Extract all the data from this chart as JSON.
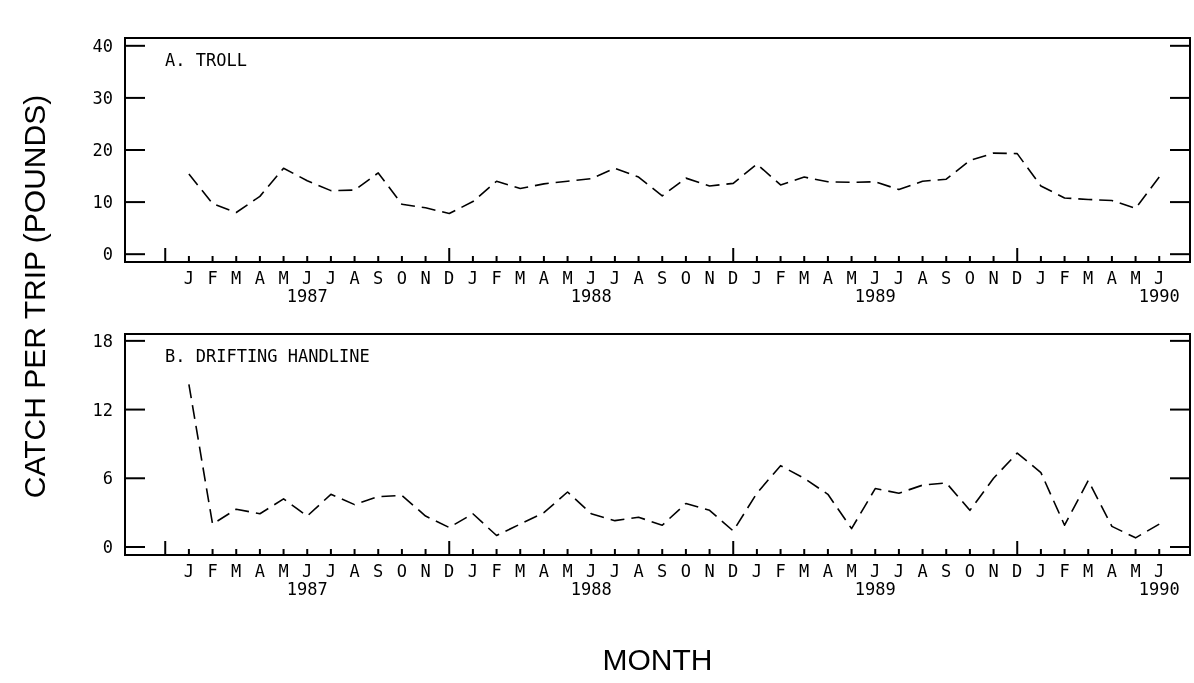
{
  "chart_data": [
    {
      "type": "line",
      "title": "A. TROLL",
      "ylabel": "CATCH PER TRIP  (POUNDS)",
      "line_style": "dashed",
      "grid": false,
      "marker": "none",
      "categories": [
        null,
        "J",
        "F",
        "M",
        "A",
        "M",
        "J\n1987",
        "J",
        "A",
        "S",
        "O",
        "N",
        "D",
        "J",
        "F",
        "M",
        "A",
        "M",
        "J\n1988",
        "J",
        "A",
        "S",
        "O",
        "N",
        "D",
        "J",
        "F",
        "M",
        "A",
        "M",
        "J\n1989",
        "J",
        "A",
        "S",
        "O",
        "N",
        "D",
        "J",
        "F",
        "M",
        "A",
        "M",
        "J\n1990"
      ],
      "series": [
        {
          "color": "#000000",
          "values": [
            null,
            15.4,
            9.7,
            8.0,
            11.1,
            16.5,
            14.1,
            12.2,
            12.3,
            15.6,
            9.6,
            8.9,
            7.8,
            10.1,
            14.0,
            12.6,
            13.5,
            14.0,
            14.5,
            16.5,
            14.8,
            11.2,
            14.6,
            13.1,
            13.6,
            17.3,
            13.3,
            14.8,
            13.9,
            13.8,
            13.9,
            12.4,
            14.0,
            14.4,
            18.0,
            19.4,
            19.3,
            13.1,
            10.8,
            10.5,
            10.3,
            8.8,
            14.8
          ]
        }
      ],
      "ylim": [
        -1.5,
        41.5
      ],
      "yticks": [
        0,
        10,
        20,
        30,
        40
      ]
    },
    {
      "type": "line",
      "title": "B. DRIFTING HANDLINE",
      "xlabel": "MONTH",
      "line_style": "dashed",
      "grid": false,
      "marker": "none",
      "categories": [
        null,
        "J",
        "F",
        "M",
        "A",
        "M",
        "J\n1987",
        "J",
        "A",
        "S",
        "O",
        "N",
        "D",
        "J",
        "F",
        "M",
        "A",
        "M",
        "J\n1988",
        "J",
        "A",
        "S",
        "O",
        "N",
        "D",
        "J",
        "F",
        "M",
        "A",
        "M",
        "J\n1989",
        "J",
        "A",
        "S",
        "O",
        "N",
        "D",
        "J",
        "F",
        "M",
        "A",
        "M",
        "J\n1990"
      ],
      "series": [
        {
          "color": "#000000",
          "values": [
            null,
            14.2,
            2.0,
            3.3,
            2.9,
            4.2,
            2.7,
            4.6,
            3.7,
            4.4,
            4.5,
            2.7,
            1.7,
            2.9,
            1.0,
            2.0,
            3.0,
            4.8,
            2.9,
            2.3,
            2.6,
            1.9,
            3.8,
            3.2,
            1.4,
            4.7,
            7.1,
            6.0,
            4.6,
            1.6,
            5.1,
            4.7,
            5.4,
            5.6,
            3.2,
            6.0,
            8.2,
            6.5,
            1.9,
            5.8,
            1.8,
            0.8,
            2.0
          ]
        }
      ],
      "ylim": [
        -0.7,
        18.6
      ],
      "yticks": [
        0,
        6,
        12,
        18
      ]
    }
  ]
}
